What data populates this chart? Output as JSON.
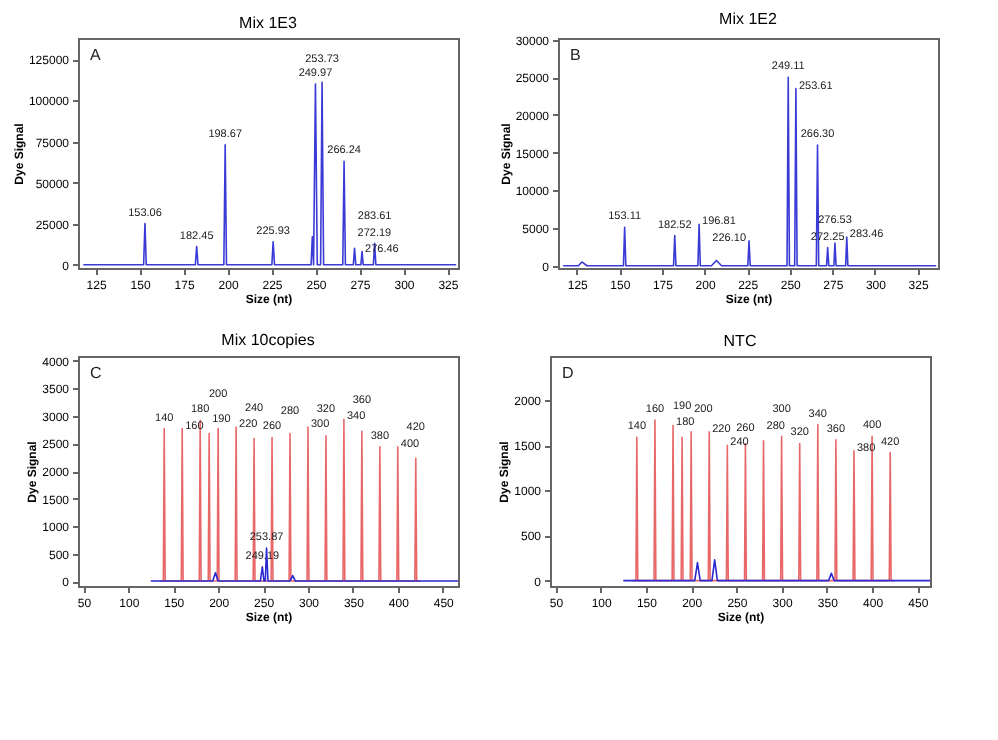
{
  "chart_data": [
    {
      "type": "line",
      "title": "Mix 1E3",
      "xlabel": "Size (nt)",
      "ylabel": "Dye Signal",
      "xlim": [
        115,
        331
      ],
      "ylim": [
        -2000,
        138000
      ],
      "xticks": [
        125,
        150,
        175,
        200,
        225,
        250,
        275,
        300,
        325
      ],
      "yticks": [
        0,
        25000,
        50000,
        75000,
        100000,
        125000
      ],
      "grid": false,
      "series": [
        {
          "color": "#3a3ad6",
          "x": [
            118,
            152.3,
            153.06,
            153.8,
            181.7,
            182.45,
            183.2,
            197.9,
            198.67,
            199.4,
            225.2,
            225.93,
            226.7,
            247.5,
            248.2,
            248.9,
            249.97,
            251,
            252.9,
            253.73,
            254.6,
            265.5,
            266.24,
            267,
            271.5,
            272.19,
            272.9,
            275.8,
            276.46,
            277.1,
            282.9,
            283.61,
            284.3,
            330
          ],
          "values": [
            0,
            0,
            25000,
            0,
            0,
            11000,
            0,
            0,
            73000,
            0,
            0,
            14000,
            0,
            0,
            17000,
            0,
            110000,
            0,
            0,
            111000,
            0,
            0,
            63000,
            0,
            0,
            10000,
            0,
            0,
            8000,
            0,
            0,
            13000,
            0,
            0
          ]
        }
      ],
      "annotations": [
        "A",
        {
          "text": "153.06",
          "x": 153.06,
          "y": 25000
        },
        {
          "text": "182.45",
          "x": 182.45,
          "y": 11000
        },
        {
          "text": "198.67",
          "x": 198.67,
          "y": 73000
        },
        {
          "text": "225.93",
          "x": 225.93,
          "y": 14000
        },
        {
          "text": "249.97",
          "x": 249.97,
          "y": 110000
        },
        {
          "text": "253.73",
          "x": 253.73,
          "y": 111000
        },
        {
          "text": "266.24",
          "x": 266.24,
          "y": 63000
        },
        {
          "text": "272.19",
          "x": 272.19,
          "y": 10000
        },
        {
          "text": "276.46",
          "x": 276.46,
          "y": 8000
        },
        {
          "text": "283.61",
          "x": 283.61,
          "y": 13000
        }
      ]
    },
    {
      "type": "line",
      "title": "Mix 1E2",
      "xlabel": "Size (nt)",
      "ylabel": "Dye Signal",
      "xlim": [
        114,
        337
      ],
      "ylim": [
        -300,
        30200
      ],
      "xticks": [
        125,
        150,
        175,
        200,
        225,
        250,
        275,
        300,
        325
      ],
      "yticks": [
        0,
        5000,
        10000,
        15000,
        20000,
        25000,
        30000
      ],
      "grid": false,
      "series": [
        {
          "color": "#3a3ad6",
          "x": [
            117,
            126,
            128,
            131,
            152.4,
            153.11,
            153.8,
            181.8,
            182.52,
            183.2,
            196.1,
            196.81,
            197.5,
            204,
            207,
            210,
            225.4,
            226.1,
            226.8,
            248.4,
            249.11,
            249.8,
            252.9,
            253.61,
            254.3,
            265.6,
            266.3,
            267,
            271.6,
            272.25,
            272.9,
            275.9,
            276.53,
            277.2,
            282.8,
            283.46,
            284.1,
            336
          ],
          "values": [
            0,
            0,
            500,
            0,
            0,
            5100,
            0,
            0,
            4000,
            0,
            0,
            5500,
            0,
            0,
            700,
            0,
            0,
            3300,
            0,
            0,
            25000,
            0,
            0,
            23500,
            0,
            0,
            16000,
            0,
            0,
            2400,
            0,
            0,
            3000,
            0,
            0,
            3800,
            0,
            0
          ]
        }
      ],
      "annotations": [
        "B",
        {
          "text": "153.11",
          "x": 153.11,
          "y": 5100
        },
        {
          "text": "182.52",
          "x": 182.52,
          "y": 4000
        },
        {
          "text": "196.81",
          "x": 196.81,
          "y": 5500
        },
        {
          "text": "226.10",
          "x": 226.1,
          "y": 3300
        },
        {
          "text": "249.11",
          "x": 249.11,
          "y": 25000
        },
        {
          "text": "253.61",
          "x": 253.61,
          "y": 23500
        },
        {
          "text": "266.30",
          "x": 266.3,
          "y": 16000
        },
        {
          "text": "272.25",
          "x": 272.25,
          "y": 2400
        },
        {
          "text": "276.53",
          "x": 276.53,
          "y": 3000
        },
        {
          "text": "283.46",
          "x": 283.46,
          "y": 3800
        }
      ]
    },
    {
      "type": "line",
      "title": "Mix 10copies",
      "xlabel": "Size (nt)",
      "ylabel": "Dye Signal",
      "xlim": [
        44,
        467
      ],
      "ylim": [
        -90,
        4090
      ],
      "xticks": [
        50,
        100,
        150,
        200,
        250,
        300,
        350,
        400,
        450
      ],
      "yticks": [
        0,
        500,
        1000,
        1500,
        2000,
        2500,
        3000,
        3500,
        4000
      ],
      "grid": false,
      "series": [
        {
          "color": "#e8686a",
          "x": [
            135,
            139,
            140,
            141,
            159,
            160,
            161,
            179,
            180,
            181,
            189,
            190,
            191,
            199,
            200,
            201,
            219,
            220,
            221,
            239,
            240,
            241,
            259,
            260,
            261,
            279,
            280,
            281,
            299,
            300,
            301,
            319,
            320,
            321,
            339,
            340,
            341,
            359,
            360,
            361,
            379,
            380,
            381,
            399,
            400,
            401,
            419,
            420,
            421,
            425
          ],
          "values": [
            0,
            0,
            2770,
            0,
            0,
            2770,
            0,
            0,
            2920,
            0,
            0,
            2680,
            0,
            0,
            2770,
            0,
            0,
            2800,
            0,
            0,
            2590,
            0,
            0,
            2610,
            0,
            0,
            2680,
            0,
            0,
            2800,
            0,
            0,
            2640,
            0,
            0,
            2940,
            0,
            0,
            2720,
            0,
            0,
            2440,
            0,
            0,
            2440,
            0,
            0,
            2230,
            0,
            0
          ]
        },
        {
          "color": "#2a2ad0",
          "x": [
            125,
            150,
            194,
            197,
            200,
            247,
            249.19,
            251,
            252.5,
            253.87,
            255.5,
            280,
            283,
            286,
            350,
            467
          ],
          "values": [
            0,
            0,
            0,
            150,
            0,
            0,
            260,
            0,
            0,
            600,
            0,
            0,
            100,
            0,
            0,
            0
          ]
        }
      ],
      "annotations": [
        "C",
        {
          "text": "140",
          "x": 140,
          "y": 2770
        },
        {
          "text": "160",
          "x": 160,
          "y": 2770
        },
        {
          "text": "180",
          "x": 180,
          "y": 2920
        },
        {
          "text": "190",
          "x": 190,
          "y": 2680
        },
        {
          "text": "200",
          "x": 200,
          "y": 2770
        },
        {
          "text": "220",
          "x": 220,
          "y": 2800
        },
        {
          "text": "240",
          "x": 240,
          "y": 2590
        },
        {
          "text": "260",
          "x": 260,
          "y": 2610
        },
        {
          "text": "280",
          "x": 280,
          "y": 2680
        },
        {
          "text": "300",
          "x": 300,
          "y": 2800
        },
        {
          "text": "320",
          "x": 320,
          "y": 2640
        },
        {
          "text": "340",
          "x": 340,
          "y": 2940
        },
        {
          "text": "360",
          "x": 360,
          "y": 2720
        },
        {
          "text": "380",
          "x": 380,
          "y": 2440
        },
        {
          "text": "400",
          "x": 400,
          "y": 2440
        },
        {
          "text": "420",
          "x": 420,
          "y": 2230
        },
        {
          "text": "249.19",
          "x": 249.19,
          "y": 260
        },
        {
          "text": "253.87",
          "x": 253.87,
          "y": 600
        }
      ]
    },
    {
      "type": "line",
      "title": "NTC",
      "xlabel": "Size (nt)",
      "ylabel": "Dye Signal",
      "xlim": [
        44,
        464
      ],
      "ylim": [
        -60,
        2490
      ],
      "xticks": [
        50,
        100,
        150,
        200,
        250,
        300,
        350,
        400,
        450
      ],
      "yticks": [
        0,
        500,
        1000,
        1500,
        2000
      ],
      "grid": false,
      "series": [
        {
          "color": "#e8686a",
          "x": [
            135,
            139,
            140,
            141,
            159,
            160,
            161,
            179,
            180,
            181,
            189,
            190,
            191,
            199,
            200,
            201,
            219,
            220,
            221,
            239,
            240,
            241,
            259,
            260,
            261,
            279,
            280,
            281,
            299,
            300,
            301,
            319,
            320,
            321,
            339,
            340,
            341,
            359,
            360,
            361,
            379,
            380,
            381,
            399,
            400,
            401,
            419,
            420,
            421,
            425
          ],
          "values": [
            0,
            0,
            1590,
            0,
            0,
            1780,
            0,
            0,
            1720,
            0,
            0,
            1590,
            0,
            0,
            1650,
            0,
            0,
            1650,
            0,
            0,
            1500,
            0,
            0,
            1520,
            0,
            0,
            1550,
            0,
            0,
            1600,
            0,
            0,
            1520,
            0,
            0,
            1730,
            0,
            0,
            1560,
            0,
            0,
            1440,
            0,
            0,
            1600,
            0,
            0,
            1420,
            0,
            0
          ]
        },
        {
          "color": "#2a2ad0",
          "x": [
            125,
            204,
            207,
            210,
            223,
            226,
            229,
            352,
            355,
            358,
            464
          ],
          "values": [
            0,
            0,
            200,
            0,
            0,
            230,
            0,
            0,
            80,
            0,
            0
          ]
        }
      ],
      "annotations": [
        "D",
        {
          "text": "140",
          "x": 140,
          "y": 1590
        },
        {
          "text": "160",
          "x": 160,
          "y": 1780
        },
        {
          "text": "180",
          "x": 180,
          "y": 1720
        },
        {
          "text": "190",
          "x": 190,
          "y": 1590
        },
        {
          "text": "200",
          "x": 200,
          "y": 1650
        },
        {
          "text": "220",
          "x": 220,
          "y": 1650
        },
        {
          "text": "240",
          "x": 240,
          "y": 1500
        },
        {
          "text": "260",
          "x": 260,
          "y": 1520
        },
        {
          "text": "280",
          "x": 280,
          "y": 1550
        },
        {
          "text": "300",
          "x": 300,
          "y": 1600
        },
        {
          "text": "320",
          "x": 320,
          "y": 1520
        },
        {
          "text": "340",
          "x": 340,
          "y": 1730
        },
        {
          "text": "360",
          "x": 360,
          "y": 1560
        },
        {
          "text": "380",
          "x": 380,
          "y": 1440
        },
        {
          "text": "400",
          "x": 400,
          "y": 1600
        },
        {
          "text": "420",
          "x": 420,
          "y": 1420
        }
      ]
    }
  ]
}
